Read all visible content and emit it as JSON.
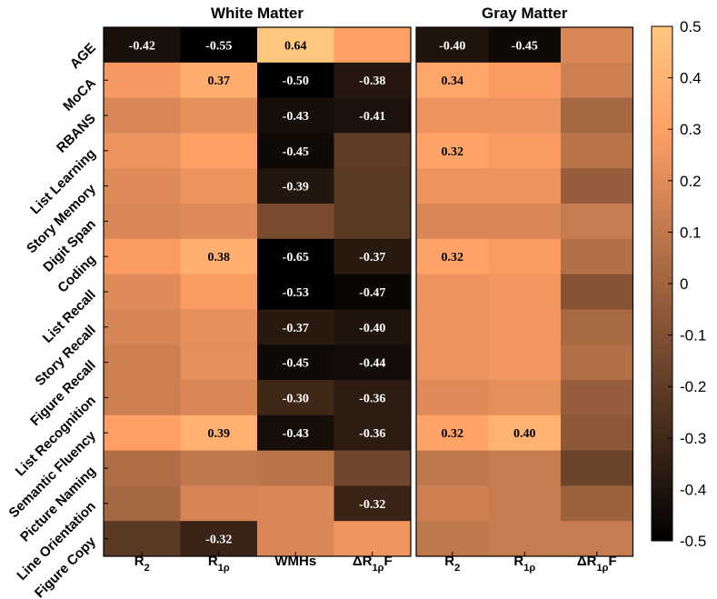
{
  "chart_data": {
    "type": "heatmap",
    "colormap": "copper",
    "clim": [
      -0.5,
      0.5
    ],
    "rows": [
      "AGE",
      "MoCA",
      "RBANS",
      "List Learning",
      "Story Memory",
      "Digit Span",
      "Coding",
      "List Recall",
      "Story Recall",
      "Figure Recall",
      "List Recognition",
      "Semantic Fluency",
      "Picture Naming",
      "Line Orientation",
      "Figure Copy"
    ],
    "colorbar_ticks": [
      "0.5",
      "0.4",
      "0.3",
      "0.2",
      "0.1",
      "0",
      "-0.1",
      "-0.2",
      "-0.3",
      "-0.4",
      "-0.5"
    ],
    "colorbar_tick_values": [
      0.5,
      0.4,
      0.3,
      0.2,
      0.1,
      0,
      -0.1,
      -0.2,
      -0.3,
      -0.4,
      -0.5
    ],
    "panels": [
      {
        "title": "White Matter",
        "columns": [
          {
            "label": "R",
            "sub": "2"
          },
          {
            "label": "R",
            "sub": "1ρ"
          },
          {
            "label": "WMHs",
            "sub": ""
          },
          {
            "label": "ΔR",
            "sub": "1ρ",
            "suffix": "F"
          }
        ],
        "values": [
          [
            -0.42,
            -0.55,
            0.64,
            0.3
          ],
          [
            0.27,
            0.37,
            -0.5,
            -0.38
          ],
          [
            0.18,
            0.22,
            -0.43,
            -0.41
          ],
          [
            0.24,
            0.3,
            -0.45,
            -0.2
          ],
          [
            0.2,
            0.24,
            -0.39,
            -0.22
          ],
          [
            0.18,
            0.2,
            -0.12,
            -0.22
          ],
          [
            0.28,
            0.38,
            -0.65,
            -0.37
          ],
          [
            0.2,
            0.28,
            -0.53,
            -0.47
          ],
          [
            0.17,
            0.22,
            -0.37,
            -0.4
          ],
          [
            0.14,
            0.22,
            -0.45,
            -0.44
          ],
          [
            0.14,
            0.18,
            -0.3,
            -0.36
          ],
          [
            0.3,
            0.39,
            -0.43,
            -0.36
          ],
          [
            0.05,
            0.1,
            0.08,
            -0.15
          ],
          [
            0.02,
            0.17,
            0.18,
            -0.32
          ],
          [
            -0.22,
            -0.32,
            0.18,
            0.25
          ]
        ],
        "labels": [
          [
            "-0.42",
            "-0.55",
            "0.64",
            ""
          ],
          [
            "",
            "0.37",
            "-0.50",
            "-0.38"
          ],
          [
            "",
            "",
            "-0.43",
            "-0.41"
          ],
          [
            "",
            "",
            "-0.45",
            ""
          ],
          [
            "",
            "",
            "-0.39",
            ""
          ],
          [
            "",
            "",
            "",
            ""
          ],
          [
            "",
            "0.38",
            "-0.65",
            "-0.37"
          ],
          [
            "",
            "",
            "-0.53",
            "-0.47"
          ],
          [
            "",
            "",
            "-0.37",
            "-0.40"
          ],
          [
            "",
            "",
            "-0.45",
            "-0.44"
          ],
          [
            "",
            "",
            "-0.30",
            "-0.36"
          ],
          [
            "",
            "0.39",
            "-0.43",
            "-0.36"
          ],
          [
            "",
            "",
            "",
            ""
          ],
          [
            "",
            "",
            "",
            "-0.32"
          ],
          [
            "",
            "-0.32",
            "",
            ""
          ]
        ]
      },
      {
        "title": "Gray Matter",
        "columns": [
          {
            "label": "R",
            "sub": "2"
          },
          {
            "label": "R",
            "sub": "1ρ"
          },
          {
            "label": "ΔR",
            "sub": "1ρ",
            "suffix": "F"
          }
        ],
        "values": [
          [
            -0.4,
            -0.45,
            0.18
          ],
          [
            0.34,
            0.28,
            0.14
          ],
          [
            0.24,
            0.24,
            0.02
          ],
          [
            0.32,
            0.28,
            0.08
          ],
          [
            0.24,
            0.24,
            -0.03
          ],
          [
            0.18,
            0.18,
            0.12
          ],
          [
            0.32,
            0.28,
            0.06
          ],
          [
            0.24,
            0.26,
            -0.08
          ],
          [
            0.24,
            0.26,
            0.03
          ],
          [
            0.24,
            0.26,
            0.06
          ],
          [
            0.2,
            0.22,
            -0.03
          ],
          [
            0.32,
            0.4,
            -0.06
          ],
          [
            0.1,
            0.12,
            -0.16
          ],
          [
            0.14,
            0.12,
            -0.01
          ],
          [
            0.1,
            0.12,
            0.12
          ]
        ],
        "labels": [
          [
            "-0.40",
            "-0.45",
            ""
          ],
          [
            "0.34",
            "",
            ""
          ],
          [
            "",
            "",
            ""
          ],
          [
            "0.32",
            "",
            ""
          ],
          [
            "",
            "",
            ""
          ],
          [
            "",
            "",
            ""
          ],
          [
            "0.32",
            "",
            ""
          ],
          [
            "",
            "",
            ""
          ],
          [
            "",
            "",
            ""
          ],
          [
            "",
            "",
            ""
          ],
          [
            "",
            "",
            ""
          ],
          [
            "0.32",
            "0.40",
            ""
          ],
          [
            "",
            "",
            ""
          ],
          [
            "",
            "",
            ""
          ],
          [
            "",
            "",
            ""
          ]
        ]
      }
    ]
  }
}
